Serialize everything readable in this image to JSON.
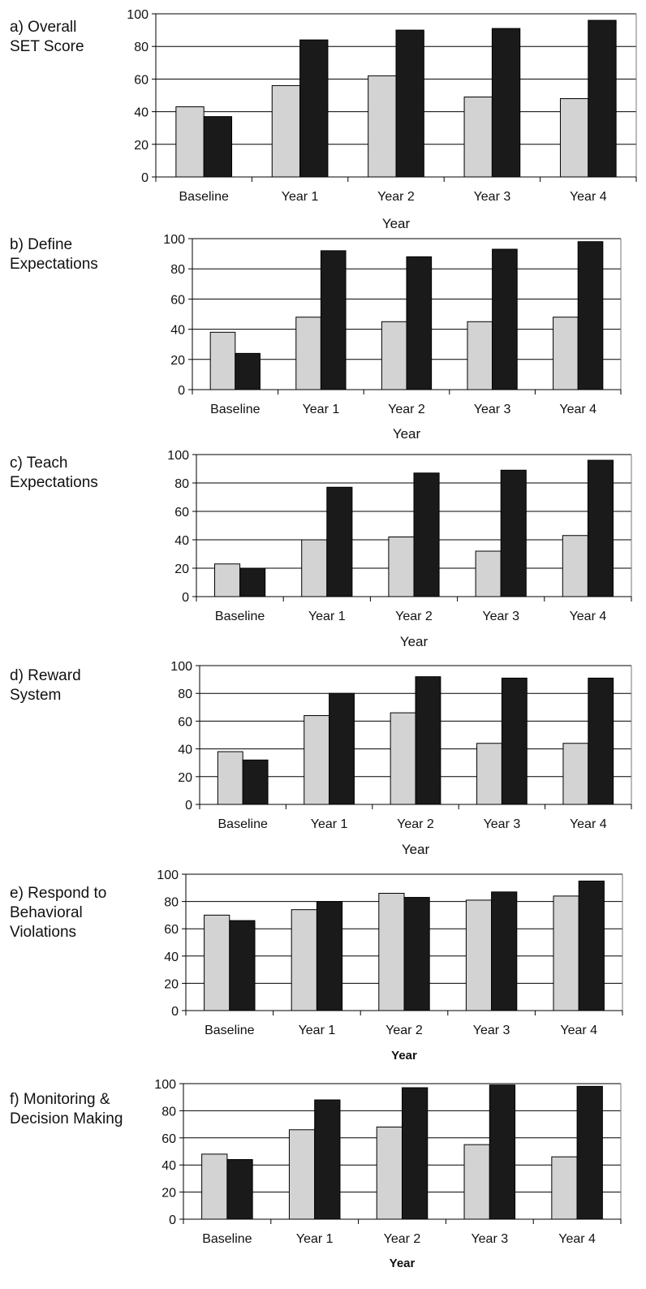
{
  "chart_data": [
    {
      "type": "bar",
      "panel_label": [
        "a)  Overall",
        "SET Score"
      ],
      "categories": [
        "Baseline",
        "Year 1",
        "Year 2",
        "Year 3",
        "Year 4"
      ],
      "series": [
        {
          "values": [
            43,
            56,
            62,
            49,
            48
          ],
          "color": "#d3d3d3"
        },
        {
          "values": [
            37,
            84,
            90,
            91,
            96
          ],
          "color": "#1a1a1a"
        }
      ],
      "yticks": [
        0,
        20,
        40,
        60,
        80,
        100
      ],
      "ylim": [
        0,
        100
      ],
      "xlabel": "Year",
      "xlabel_bold": false,
      "grid": true
    },
    {
      "type": "bar",
      "panel_label": [
        "b) Define",
        "Expectations"
      ],
      "categories": [
        "Baseline",
        "Year 1",
        "Year 2",
        "Year 3",
        "Year 4"
      ],
      "series": [
        {
          "values": [
            38,
            48,
            45,
            45,
            48
          ],
          "color": "#d3d3d3"
        },
        {
          "values": [
            24,
            92,
            88,
            93,
            98
          ],
          "color": "#1a1a1a"
        }
      ],
      "yticks": [
        0,
        20,
        40,
        60,
        80,
        100
      ],
      "ylim": [
        0,
        100
      ],
      "xlabel": "Year",
      "xlabel_bold": false,
      "grid": true
    },
    {
      "type": "bar",
      "panel_label": [
        "c) Teach",
        "Expectations"
      ],
      "categories": [
        "Baseline",
        "Year 1",
        "Year 2",
        "Year 3",
        "Year 4"
      ],
      "series": [
        {
          "values": [
            23,
            40,
            42,
            32,
            43
          ],
          "color": "#d3d3d3"
        },
        {
          "values": [
            20,
            77,
            87,
            89,
            96
          ],
          "color": "#1a1a1a"
        }
      ],
      "yticks": [
        0,
        20,
        40,
        60,
        80,
        100
      ],
      "ylim": [
        0,
        100
      ],
      "xlabel": "Year",
      "xlabel_bold": false,
      "grid": true
    },
    {
      "type": "bar",
      "panel_label": [
        "d) Reward",
        "System"
      ],
      "categories": [
        "Baseline",
        "Year 1",
        "Year 2",
        "Year 3",
        "Year 4"
      ],
      "series": [
        {
          "values": [
            38,
            64,
            66,
            44,
            44
          ],
          "color": "#d3d3d3"
        },
        {
          "values": [
            32,
            80,
            92,
            91,
            91
          ],
          "color": "#1a1a1a"
        }
      ],
      "yticks": [
        0,
        20,
        40,
        60,
        80,
        100
      ],
      "ylim": [
        0,
        100
      ],
      "xlabel": "Year",
      "xlabel_bold": false,
      "grid": true
    },
    {
      "type": "bar",
      "panel_label": [
        "e) Respond to",
        "Behavioral",
        "Violations"
      ],
      "categories": [
        "Baseline",
        "Year 1",
        "Year 2",
        "Year 3",
        "Year 4"
      ],
      "series": [
        {
          "values": [
            70,
            74,
            86,
            81,
            84
          ],
          "color": "#d3d3d3"
        },
        {
          "values": [
            66,
            80,
            83,
            87,
            95
          ],
          "color": "#1a1a1a"
        }
      ],
      "yticks": [
        0,
        20,
        40,
        60,
        80,
        100
      ],
      "ylim": [
        0,
        100
      ],
      "xlabel": "Year",
      "xlabel_bold": true,
      "grid": true
    },
    {
      "type": "bar",
      "panel_label": [
        "f) Monitoring &",
        "Decision Making"
      ],
      "categories": [
        "Baseline",
        "Year 1",
        "Year 2",
        "Year 3",
        "Year 4"
      ],
      "series": [
        {
          "values": [
            48,
            66,
            68,
            55,
            46
          ],
          "color": "#d3d3d3"
        },
        {
          "values": [
            44,
            88,
            97,
            99,
            98
          ],
          "color": "#1a1a1a"
        }
      ],
      "yticks": [
        0,
        20,
        40,
        60,
        80,
        100
      ],
      "ylim": [
        0,
        100
      ],
      "xlabel": "Year",
      "xlabel_bold": true,
      "grid": true
    }
  ]
}
